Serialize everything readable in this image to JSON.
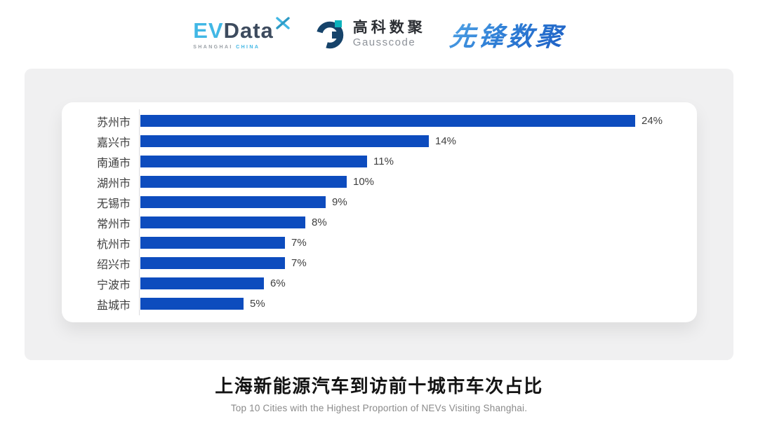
{
  "header": {
    "evdata": {
      "part1": "EV",
      "part2": "Data",
      "sub1": "SHANGHAI",
      "sub2": "CHINA"
    },
    "gausscode": {
      "cn": "高科数聚",
      "en": "Gausscode"
    },
    "xianfeng": "先锋数聚"
  },
  "chart_data": {
    "type": "bar",
    "orientation": "horizontal",
    "title": "上海新能源汽车到访前十城市车次占比",
    "subtitle": "Top 10 Cities with the Highest Proportion of  NEVs Visiting Shanghai.",
    "categories": [
      "苏州市",
      "嘉兴市",
      "南通市",
      "湖州市",
      "无锡市",
      "常州市",
      "杭州市",
      "绍兴市",
      "宁波市",
      "盐城市"
    ],
    "values": [
      24,
      14,
      11,
      10,
      9,
      8,
      7,
      7,
      6,
      5
    ],
    "value_suffix": "%",
    "xlim": [
      0,
      25
    ],
    "grid": false,
    "legend": "none",
    "bar_color": "#0d4cbe"
  },
  "footer": {
    "title_cn": "上海新能源汽车到访前十城市车次占比",
    "title_en": "Top 10 Cities with the Highest Proportion of  NEVs Visiting Shanghai."
  },
  "colors": {
    "bar": "#0d4cbe",
    "panel_bg": "#f0f0f1",
    "card_bg": "#ffffff",
    "axis_line": "#dcdcde",
    "label_text": "#3d3d3d",
    "title_text": "#141414",
    "subtitle_text": "#8a8a8a",
    "evdata_blue": "#41b7e5",
    "evdata_dark": "#3d4b5e",
    "gausscode_navy": "#16436a",
    "gausscode_teal": "#0cb2bc",
    "xianfeng_blue": "#2f7fd6"
  }
}
